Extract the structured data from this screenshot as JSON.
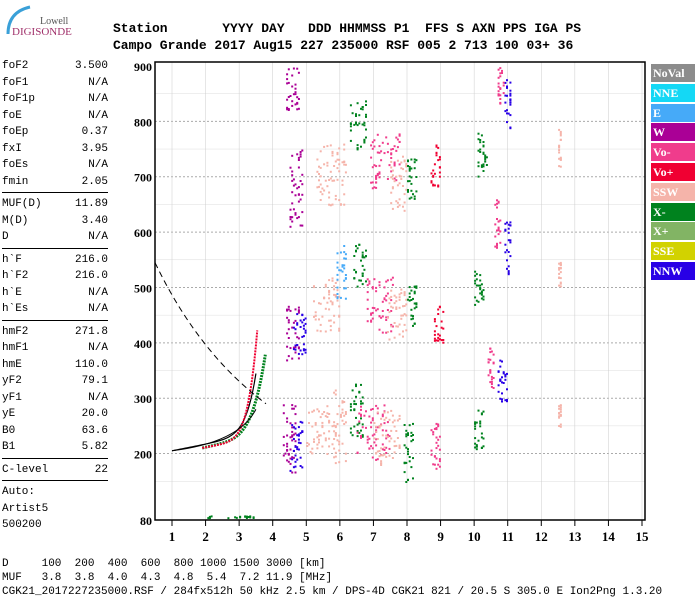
{
  "logo": {
    "line1": "Lowell",
    "line2": "DIGISONDE"
  },
  "header": {
    "labels": "Station       YYYY DAY   DDD HHMMSS P1  FFS S AXN PPS IGA PS",
    "values": "Campo Grande 2017 Aug15 227 235000 RSF 005 2 713 100 03+ 36"
  },
  "params": [
    {
      "group": [
        [
          "foF2",
          "3.500"
        ],
        [
          "foF1",
          "N/A"
        ],
        [
          "foF1p",
          "N/A"
        ],
        [
          "foE",
          "N/A"
        ],
        [
          "foEp",
          "0.37"
        ],
        [
          "fxI",
          "3.95"
        ],
        [
          "foEs",
          "N/A"
        ],
        [
          "fmin",
          "2.05"
        ]
      ]
    },
    {
      "group": [
        [
          "MUF(D)",
          "11.89"
        ],
        [
          "M(D)",
          "3.40"
        ],
        [
          "D",
          "N/A"
        ]
      ]
    },
    {
      "group": [
        [
          "h`F",
          "216.0"
        ],
        [
          "h`F2",
          "216.0"
        ],
        [
          "h`E",
          "N/A"
        ],
        [
          "h`Es",
          "N/A"
        ]
      ]
    },
    {
      "group": [
        [
          "hmF2",
          "271.8"
        ],
        [
          "hmF1",
          "N/A"
        ],
        [
          "hmE",
          "110.0"
        ],
        [
          "yF2",
          "79.1"
        ],
        [
          "yF1",
          "N/A"
        ],
        [
          "yE",
          "20.0"
        ],
        [
          "B0",
          "63.6"
        ],
        [
          "B1",
          "5.82"
        ]
      ]
    },
    {
      "group": [
        [
          "C-level",
          "22"
        ]
      ]
    }
  ],
  "auto": [
    "Auto:",
    "Artist5",
    "500200"
  ],
  "legend": [
    {
      "label": "NoVal",
      "color": "#8c8c8c"
    },
    {
      "label": "NNE",
      "color": "#14d8f5"
    },
    {
      "label": "E",
      "color": "#46aaf8"
    },
    {
      "label": "W",
      "color": "#aa0096"
    },
    {
      "label": "Vo-",
      "color": "#f03c8c"
    },
    {
      "label": "Vo+",
      "color": "#f00032"
    },
    {
      "label": "SSW",
      "color": "#f5b4aa"
    },
    {
      "label": "X-",
      "color": "#00821e"
    },
    {
      "label": "X+",
      "color": "#82b464"
    },
    {
      "label": "SSE",
      "color": "#d2d200"
    },
    {
      "label": "NNW",
      "color": "#2800e6"
    }
  ],
  "footer": {
    "d_row": "D     100  200  400  600  800 1000 1500 3000 [km]",
    "muf_row": "MUF   3.8  3.8  4.0  4.3  4.8  5.4  7.2 11.9 [MHz]",
    "info": "CGK21_2017227235000.RSF / 284fx512h 50 kHz 2.5 km / DPS-4D CGK21 821 / 20.5 S 305.0 E Ion2Png 1.3.20"
  },
  "chart_data": {
    "type": "scatter",
    "xlabel": "",
    "ylabel": "",
    "xlim": [
      0.5,
      15.1
    ],
    "ylim": [
      80,
      900
    ],
    "x_ticks": [
      1,
      2,
      3,
      4,
      5,
      6,
      7,
      8,
      9,
      10,
      11,
      12,
      13,
      14,
      15
    ],
    "y_ticks": [
      80,
      200,
      300,
      400,
      500,
      600,
      700,
      800,
      900
    ],
    "grid": true,
    "echo_clusters": [
      {
        "f": [
          4.3,
          4.7
        ],
        "h": [
          160,
          300
        ],
        "color": "#aa0096"
      },
      {
        "f": [
          4.4,
          4.8
        ],
        "h": [
          370,
          470
        ],
        "color": "#aa0096"
      },
      {
        "f": [
          4.5,
          4.9
        ],
        "h": [
          610,
          750
        ],
        "color": "#aa0096"
      },
      {
        "f": [
          4.5,
          4.9
        ],
        "h": [
          170,
          260
        ],
        "color": "#2800e6"
      },
      {
        "f": [
          4.6,
          5.0
        ],
        "h": [
          380,
          460
        ],
        "color": "#2800e6"
      },
      {
        "f": [
          4.4,
          4.8
        ],
        "h": [
          820,
          900
        ],
        "color": "#aa0096"
      },
      {
        "f": [
          5.0,
          5.8
        ],
        "h": [
          200,
          290
        ],
        "color": "#f5b4aa"
      },
      {
        "f": [
          5.2,
          6.0
        ],
        "h": [
          420,
          520
        ],
        "color": "#f5b4aa"
      },
      {
        "f": [
          5.3,
          6.2
        ],
        "h": [
          650,
          760
        ],
        "color": "#f5b4aa"
      },
      {
        "f": [
          5.8,
          6.2
        ],
        "h": [
          180,
          320
        ],
        "color": "#f5b4aa"
      },
      {
        "f": [
          5.9,
          6.2
        ],
        "h": [
          480,
          580
        ],
        "color": "#46aaf8"
      },
      {
        "f": [
          6.3,
          6.7
        ],
        "h": [
          230,
          330
        ],
        "color": "#00821e"
      },
      {
        "f": [
          6.4,
          6.8
        ],
        "h": [
          500,
          580
        ],
        "color": "#00821e"
      },
      {
        "f": [
          6.3,
          6.8
        ],
        "h": [
          750,
          840
        ],
        "color": "#00821e"
      },
      {
        "f": [
          6.5,
          7.5
        ],
        "h": [
          190,
          290
        ],
        "color": "#f03c8c"
      },
      {
        "f": [
          6.8,
          7.6
        ],
        "h": [
          420,
          520
        ],
        "color": "#f03c8c"
      },
      {
        "f": [
          6.9,
          7.8
        ],
        "h": [
          680,
          780
        ],
        "color": "#f03c8c"
      },
      {
        "f": [
          7.0,
          7.8
        ],
        "h": [
          180,
          280
        ],
        "color": "#f5b4aa"
      },
      {
        "f": [
          7.4,
          8.0
        ],
        "h": [
          400,
          500
        ],
        "color": "#f5b4aa"
      },
      {
        "f": [
          7.5,
          8.0
        ],
        "h": [
          640,
          740
        ],
        "color": "#f5b4aa"
      },
      {
        "f": [
          7.9,
          8.2
        ],
        "h": [
          150,
          260
        ],
        "color": "#00821e"
      },
      {
        "f": [
          8.0,
          8.3
        ],
        "h": [
          430,
          510
        ],
        "color": "#00821e"
      },
      {
        "f": [
          8.0,
          8.3
        ],
        "h": [
          660,
          740
        ],
        "color": "#00821e"
      },
      {
        "f": [
          8.7,
          9.0
        ],
        "h": [
          680,
          760
        ],
        "color": "#f00032"
      },
      {
        "f": [
          8.8,
          9.1
        ],
        "h": [
          400,
          470
        ],
        "color": "#f00032"
      },
      {
        "f": [
          8.7,
          9.0
        ],
        "h": [
          170,
          260
        ],
        "color": "#f03c8c"
      },
      {
        "f": [
          10.0,
          10.3
        ],
        "h": [
          200,
          280
        ],
        "color": "#00821e"
      },
      {
        "f": [
          10.0,
          10.3
        ],
        "h": [
          470,
          540
        ],
        "color": "#00821e"
      },
      {
        "f": [
          10.1,
          10.4
        ],
        "h": [
          700,
          780
        ],
        "color": "#00821e"
      },
      {
        "f": [
          10.7,
          11.0
        ],
        "h": [
          280,
          370
        ],
        "color": "#2800e6"
      },
      {
        "f": [
          10.9,
          11.1
        ],
        "h": [
          520,
          620
        ],
        "color": "#2800e6"
      },
      {
        "f": [
          10.9,
          11.1
        ],
        "h": [
          780,
          880
        ],
        "color": "#2800e6"
      },
      {
        "f": [
          10.4,
          10.6
        ],
        "h": [
          320,
          400
        ],
        "color": "#f03c8c"
      },
      {
        "f": [
          10.6,
          10.8
        ],
        "h": [
          570,
          660
        ],
        "color": "#f03c8c"
      },
      {
        "f": [
          10.7,
          10.9
        ],
        "h": [
          830,
          900
        ],
        "color": "#f03c8c"
      },
      {
        "f": [
          12.5,
          12.6
        ],
        "h": [
          500,
          560
        ],
        "color": "#f5b4aa"
      },
      {
        "f": [
          12.5,
          12.6
        ],
        "h": [
          720,
          790
        ],
        "color": "#f5b4aa"
      },
      {
        "f": [
          12.5,
          12.6
        ],
        "h": [
          250,
          290
        ],
        "color": "#f5b4aa"
      },
      {
        "f": [
          2.0,
          3.5
        ],
        "h": [
          85,
          90
        ],
        "color": "#00821e"
      }
    ]
  }
}
